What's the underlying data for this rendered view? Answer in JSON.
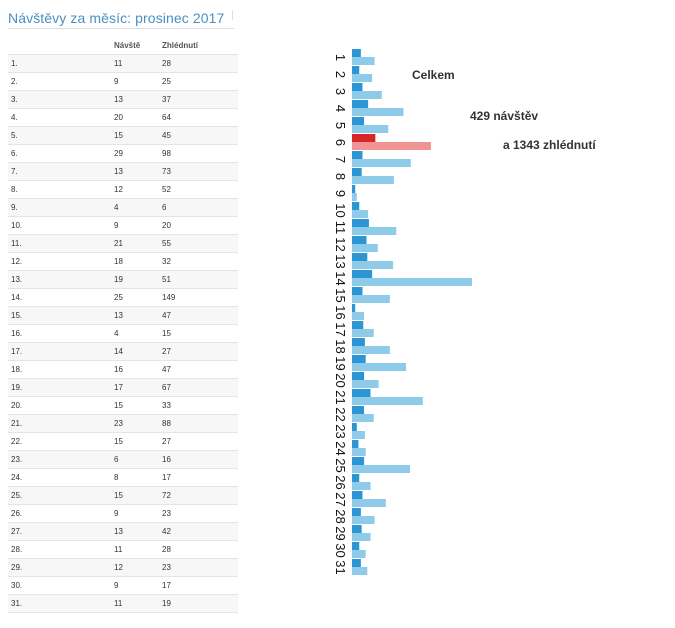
{
  "page": {
    "title": "Návštěvy za měsíc: prosinec 2017"
  },
  "table": {
    "headers": [
      "",
      "Návště",
      "Zhlédnutí"
    ]
  },
  "totals": {
    "heading": "Celkem",
    "visits_line": "429 návštěv",
    "views_line": "a 1343 zhlédnutí"
  },
  "colors": {
    "visits_bar": "#2b96d3",
    "views_bar": "#8ecbe9",
    "highlight_visits_bar": "#d62728",
    "highlight_views_bar": "#f09494",
    "title": "#4a90c2"
  },
  "chart_data": {
    "type": "bar",
    "orientation": "horizontal",
    "categories": [
      "1",
      "2",
      "3",
      "4",
      "5",
      "6",
      "7",
      "8",
      "9",
      "10",
      "11",
      "12",
      "13",
      "14",
      "15",
      "16",
      "17",
      "18",
      "19",
      "20",
      "21",
      "22",
      "23",
      "24",
      "25",
      "26",
      "27",
      "28",
      "29",
      "30",
      "31"
    ],
    "series": [
      {
        "name": "Návště",
        "values": [
          11,
          9,
          13,
          20,
          15,
          29,
          13,
          12,
          4,
          9,
          21,
          18,
          19,
          25,
          13,
          4,
          14,
          16,
          17,
          15,
          23,
          15,
          6,
          8,
          15,
          9,
          13,
          11,
          12,
          9,
          11
        ]
      },
      {
        "name": "Zhlédnutí",
        "values": [
          28,
          25,
          37,
          64,
          45,
          98,
          73,
          52,
          6,
          20,
          55,
          32,
          51,
          149,
          47,
          15,
          27,
          47,
          67,
          33,
          88,
          27,
          16,
          17,
          72,
          23,
          42,
          28,
          23,
          17,
          19
        ]
      }
    ],
    "highlight_category": "6",
    "xlim": [
      0,
      160
    ],
    "legend": "none",
    "grid": false
  }
}
